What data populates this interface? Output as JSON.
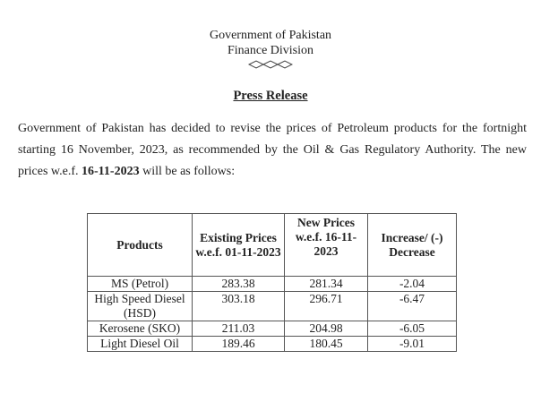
{
  "header": {
    "line1": "Government of Pakistan",
    "line2": "Finance Division",
    "ornament": "diamond-ornament"
  },
  "title": "Press Release",
  "paragraph": {
    "text_before": "Government of Pakistan has decided to revise the prices of Petroleum products for the fortnight starting 16 November, 2023, as recommended by the Oil & Gas Regulatory Authority. The new prices w.e.f. ",
    "bold_date": "16-11-2023",
    "text_after": " will be as follows:"
  },
  "table": {
    "headers": [
      "Products",
      "Existing Prices w.e.f. 01-11-2023",
      "New Prices w.e.f. 16-11-2023",
      "Increase/ (-) Decrease"
    ],
    "rows": [
      [
        "MS (Petrol)",
        "283.38",
        "281.34",
        "-2.04"
      ],
      [
        "High Speed Diesel  (HSD)",
        "303.18",
        "296.71",
        "-6.47"
      ],
      [
        "Kerosene (SKO)",
        "211.03",
        "204.98",
        "-6.05"
      ],
      [
        "Light Diesel Oil",
        "189.46",
        "180.45",
        "-9.01"
      ]
    ]
  }
}
